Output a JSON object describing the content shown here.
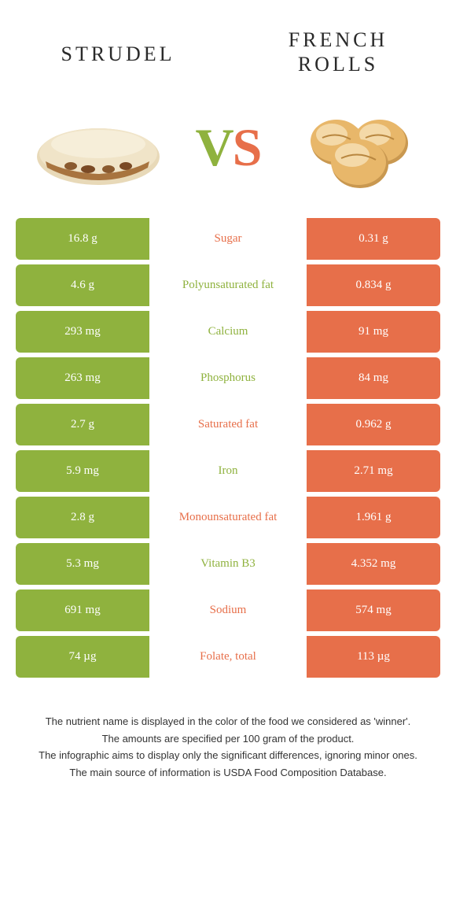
{
  "colors": {
    "green": "#8fb23e",
    "orange": "#e76f4a",
    "white": "#ffffff",
    "text_dark": "#2a2a2a",
    "strudel_crust": "#e8d9b8",
    "strudel_fill": "#a8743f",
    "roll_main": "#e8b76a",
    "roll_light": "#f4d9a8",
    "roll_shadow": "#c99850"
  },
  "header": {
    "left_title": "Strudel",
    "right_title": "French rolls",
    "vs_v": "V",
    "vs_s": "S"
  },
  "rows": [
    {
      "left": "16.8 g",
      "label": "Sugar",
      "right": "0.31 g",
      "label_color": "#e76f4a"
    },
    {
      "left": "4.6 g",
      "label": "Polyunsaturated fat",
      "right": "0.834 g",
      "label_color": "#8fb23e"
    },
    {
      "left": "293 mg",
      "label": "Calcium",
      "right": "91 mg",
      "label_color": "#8fb23e"
    },
    {
      "left": "263 mg",
      "label": "Phosphorus",
      "right": "84 mg",
      "label_color": "#8fb23e"
    },
    {
      "left": "2.7 g",
      "label": "Saturated fat",
      "right": "0.962 g",
      "label_color": "#e76f4a"
    },
    {
      "left": "5.9 mg",
      "label": "Iron",
      "right": "2.71 mg",
      "label_color": "#8fb23e"
    },
    {
      "left": "2.8 g",
      "label": "Monounsaturated fat",
      "right": "1.961 g",
      "label_color": "#e76f4a"
    },
    {
      "left": "5.3 mg",
      "label": "Vitamin B3",
      "right": "4.352 mg",
      "label_color": "#8fb23e"
    },
    {
      "left": "691 mg",
      "label": "Sodium",
      "right": "574 mg",
      "label_color": "#e76f4a"
    },
    {
      "left": "74 µg",
      "label": "Folate, total",
      "right": "113 µg",
      "label_color": "#e76f4a"
    }
  ],
  "footnotes": [
    "The nutrient name is displayed in the color of the food we considered as 'winner'.",
    "The amounts are specified per 100 gram of the product.",
    "The infographic aims to display only the significant differences, ignoring minor ones.",
    "The main source of information is USDA Food Composition Database."
  ]
}
